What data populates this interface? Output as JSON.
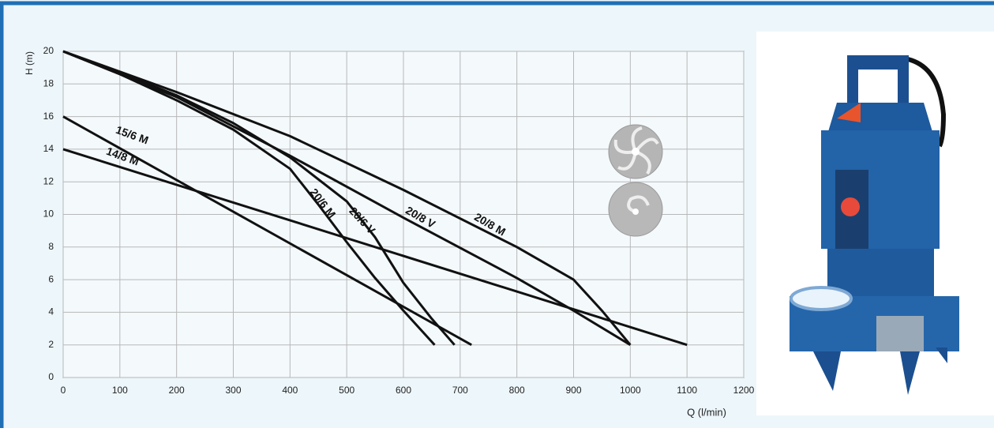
{
  "chart_data": {
    "type": "line",
    "x_label": "Q (l/min)",
    "y_label": "H (m)",
    "xlim": [
      0,
      1200
    ],
    "xticks": [
      0,
      100,
      200,
      300,
      400,
      500,
      600,
      700,
      800,
      900,
      1000,
      1100,
      1200
    ],
    "ylim": [
      0,
      20
    ],
    "yticks": [
      0,
      2,
      4,
      6,
      8,
      10,
      12,
      14,
      16,
      18,
      20
    ],
    "grid": true,
    "series": [
      {
        "name": "20/6 M",
        "color": "#111111",
        "x": [
          0,
          100,
          200,
          300,
          400,
          450,
          500,
          550,
          600,
          655
        ],
        "values": [
          20,
          18.6,
          17,
          15.2,
          12.8,
          10.6,
          8.3,
          6.1,
          4.1,
          2
        ]
      },
      {
        "name": "20/6 V",
        "color": "#111111",
        "x": [
          0,
          100,
          200,
          300,
          400,
          500,
          550,
          600,
          650,
          690
        ],
        "values": [
          20,
          18.7,
          17.3,
          15.6,
          13.5,
          10.8,
          8.6,
          5.8,
          3.6,
          2
        ]
      },
      {
        "name": "20/8 V",
        "color": "#111111",
        "x": [
          0,
          200,
          400,
          600,
          800,
          900,
          1000
        ],
        "values": [
          20,
          17.2,
          13.6,
          9.8,
          6.1,
          4.1,
          2
        ]
      },
      {
        "name": "20/8 M",
        "color": "#111111",
        "x": [
          0,
          200,
          400,
          600,
          800,
          900,
          950,
          1000
        ],
        "values": [
          20,
          17.5,
          14.8,
          11.5,
          8,
          6,
          4.1,
          2
        ]
      },
      {
        "name": "15/6 M",
        "color": "#111111",
        "x": [
          0,
          720
        ],
        "values": [
          16,
          2
        ]
      },
      {
        "name": "14/8 M",
        "color": "#111111",
        "x": [
          0,
          1100
        ],
        "values": [
          14,
          2
        ]
      }
    ]
  }
}
